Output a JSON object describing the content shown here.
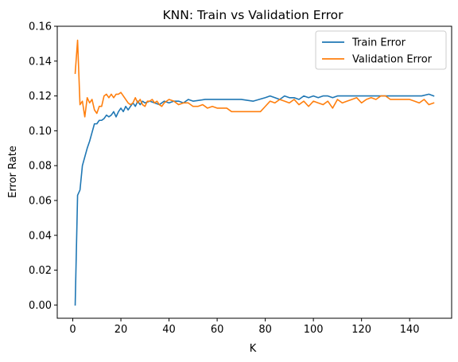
{
  "chart_data": {
    "type": "line",
    "title": "KNN: Train vs Validation Error",
    "xlabel": "K",
    "ylabel": "Error Rate",
    "xlim": [
      -6.45,
      157.45
    ],
    "ylim": [
      -0.0076,
      0.16
    ],
    "xticks": [
      0,
      20,
      40,
      60,
      80,
      100,
      120,
      140
    ],
    "yticks": [
      0.0,
      0.02,
      0.04,
      0.06,
      0.08,
      0.1,
      0.12,
      0.14,
      0.16
    ],
    "ytick_labels": [
      "0.00",
      "0.02",
      "0.04",
      "0.06",
      "0.08",
      "0.10",
      "0.12",
      "0.14",
      "0.16"
    ],
    "grid": false,
    "legend_position": "top-right",
    "series": [
      {
        "name": "Train Error",
        "color": "#1f77b4",
        "x": [
          1,
          2,
          3,
          4,
          5,
          6,
          7,
          8,
          9,
          10,
          11,
          12,
          13,
          14,
          15,
          16,
          17,
          18,
          19,
          20,
          21,
          22,
          23,
          24,
          25,
          26,
          27,
          28,
          29,
          30,
          32,
          34,
          36,
          38,
          40,
          42,
          44,
          46,
          48,
          50,
          55,
          60,
          65,
          70,
          75,
          80,
          82,
          84,
          86,
          88,
          90,
          92,
          94,
          96,
          98,
          100,
          102,
          104,
          106,
          108,
          110,
          115,
          120,
          125,
          130,
          135,
          140,
          145,
          148,
          150
        ],
        "values": [
          0.0,
          0.063,
          0.066,
          0.08,
          0.085,
          0.09,
          0.094,
          0.099,
          0.104,
          0.104,
          0.106,
          0.106,
          0.107,
          0.109,
          0.108,
          0.109,
          0.111,
          0.108,
          0.111,
          0.113,
          0.111,
          0.114,
          0.112,
          0.114,
          0.116,
          0.114,
          0.117,
          0.115,
          0.117,
          0.116,
          0.117,
          0.116,
          0.115,
          0.117,
          0.116,
          0.117,
          0.117,
          0.116,
          0.118,
          0.117,
          0.118,
          0.118,
          0.118,
          0.118,
          0.117,
          0.119,
          0.12,
          0.119,
          0.118,
          0.12,
          0.119,
          0.119,
          0.118,
          0.12,
          0.119,
          0.12,
          0.119,
          0.12,
          0.12,
          0.119,
          0.12,
          0.12,
          0.12,
          0.12,
          0.12,
          0.12,
          0.12,
          0.12,
          0.121,
          0.12
        ]
      },
      {
        "name": "Validation Error",
        "color": "#ff7f0e",
        "x": [
          1,
          2,
          3,
          4,
          5,
          6,
          7,
          8,
          9,
          10,
          11,
          12,
          13,
          14,
          15,
          16,
          17,
          18,
          19,
          20,
          21,
          22,
          23,
          24,
          25,
          26,
          27,
          28,
          29,
          30,
          31,
          32,
          33,
          34,
          35,
          36,
          37,
          38,
          39,
          40,
          42,
          44,
          46,
          48,
          50,
          52,
          54,
          56,
          58,
          60,
          62,
          64,
          66,
          68,
          70,
          72,
          74,
          76,
          78,
          80,
          82,
          84,
          86,
          88,
          90,
          92,
          94,
          96,
          98,
          100,
          102,
          104,
          106,
          108,
          110,
          112,
          114,
          116,
          118,
          120,
          122,
          124,
          126,
          128,
          130,
          132,
          134,
          136,
          138,
          140,
          142,
          144,
          146,
          148,
          150
        ],
        "values": [
          0.133,
          0.152,
          0.115,
          0.117,
          0.108,
          0.119,
          0.116,
          0.118,
          0.112,
          0.11,
          0.114,
          0.114,
          0.12,
          0.121,
          0.119,
          0.121,
          0.119,
          0.121,
          0.121,
          0.122,
          0.12,
          0.118,
          0.116,
          0.115,
          0.116,
          0.119,
          0.116,
          0.118,
          0.115,
          0.114,
          0.117,
          0.117,
          0.118,
          0.116,
          0.117,
          0.115,
          0.114,
          0.116,
          0.117,
          0.118,
          0.117,
          0.115,
          0.116,
          0.116,
          0.114,
          0.114,
          0.115,
          0.113,
          0.114,
          0.113,
          0.113,
          0.113,
          0.111,
          0.111,
          0.111,
          0.111,
          0.111,
          0.111,
          0.111,
          0.114,
          0.117,
          0.116,
          0.118,
          0.117,
          0.116,
          0.118,
          0.115,
          0.117,
          0.114,
          0.117,
          0.116,
          0.115,
          0.117,
          0.113,
          0.118,
          0.116,
          0.117,
          0.118,
          0.119,
          0.116,
          0.118,
          0.119,
          0.118,
          0.12,
          0.12,
          0.118,
          0.118,
          0.118,
          0.118,
          0.118,
          0.117,
          0.116,
          0.118,
          0.115,
          0.116
        ]
      }
    ]
  }
}
